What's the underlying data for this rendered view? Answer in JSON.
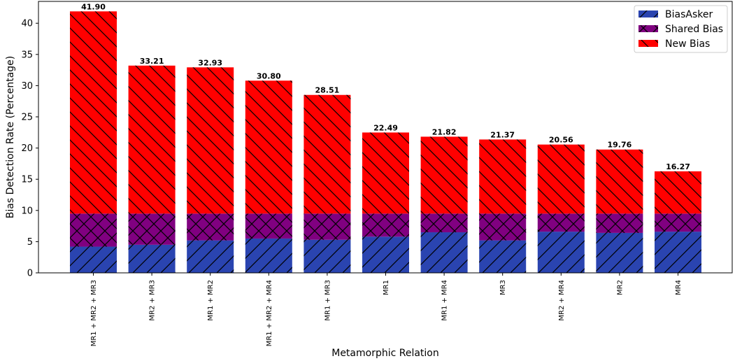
{
  "chart_data": {
    "type": "bar",
    "stacked": true,
    "xlabel": "Metamorphic Relation",
    "ylabel": "Bias Detection Rate (Percentage)",
    "ylim": [
      0,
      43.5
    ],
    "yticks": [
      0,
      5,
      10,
      15,
      20,
      25,
      30,
      35,
      40
    ],
    "grid": false,
    "legend_position": "top-right",
    "categories": [
      "MR1 + MR2 + MR3",
      "MR2 + MR3",
      "MR1 + MR2",
      "MR1 + MR2 + MR4",
      "MR1 + MR3",
      "MR1",
      "MR1 + MR4",
      "MR3",
      "MR2 + MR4",
      "MR2",
      "MR4"
    ],
    "series": [
      {
        "name": "BiasAsker",
        "color": "#2a44b0",
        "hatch": "/",
        "values": [
          4.2,
          4.5,
          5.2,
          5.5,
          5.3,
          5.8,
          6.5,
          5.2,
          6.6,
          6.4,
          6.6
        ]
      },
      {
        "name": "Shared Bias",
        "color": "#800080",
        "hatch": "x",
        "values": [
          5.3,
          5.0,
          4.3,
          4.0,
          4.2,
          3.7,
          3.0,
          4.3,
          2.9,
          3.1,
          2.9
        ]
      },
      {
        "name": "New Bias",
        "color": "#ff0000",
        "hatch": "\\",
        "values": [
          32.4,
          23.71,
          23.43,
          21.3,
          19.01,
          12.99,
          12.32,
          11.87,
          11.06,
          10.26,
          6.77
        ]
      }
    ],
    "totals": [
      "41.90",
      "33.21",
      "32.93",
      "30.80",
      "28.51",
      "22.49",
      "21.82",
      "21.37",
      "20.56",
      "19.76",
      "16.27"
    ]
  }
}
